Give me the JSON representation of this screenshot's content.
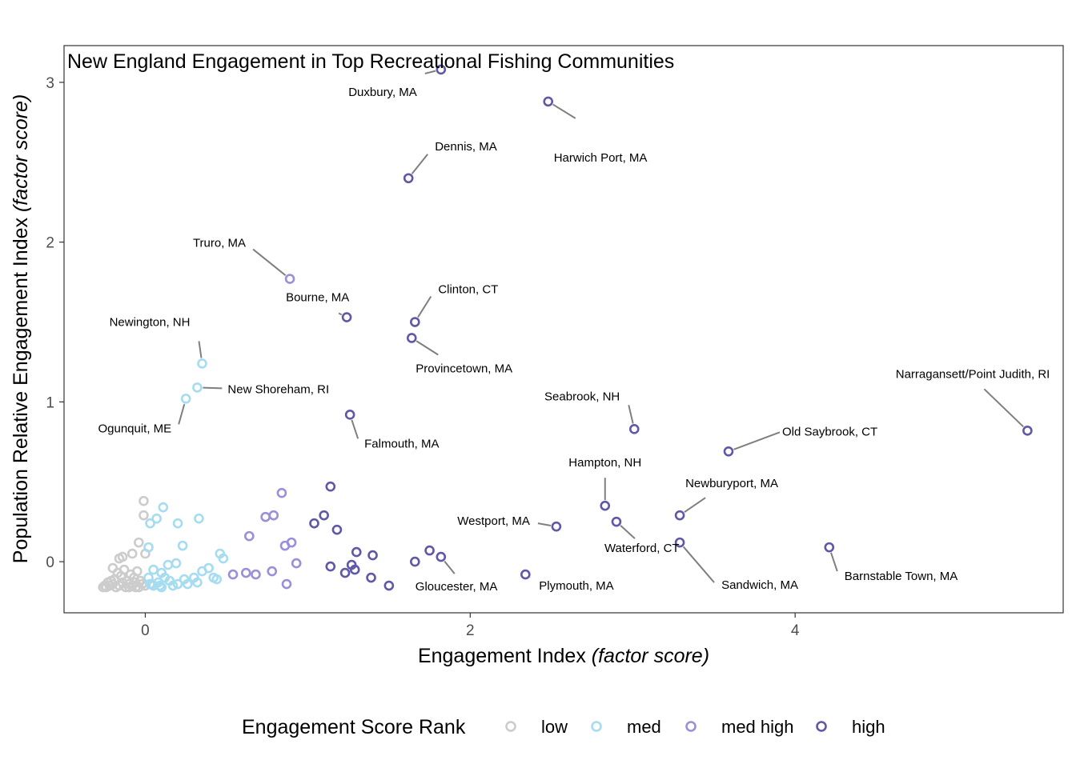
{
  "chart_data": {
    "type": "scatter",
    "title": "New England Engagement in Top Recreational Fishing Communities",
    "xlabel": "Engagement Index",
    "xlabel_italic": "(factor score)",
    "ylabel": "Population Relative Engagement Index",
    "ylabel_italic": "(factor score)",
    "xlim": [
      -0.5,
      5.65
    ],
    "ylim": [
      -0.32,
      3.23
    ],
    "x_ticks": [
      0,
      2,
      4
    ],
    "y_ticks": [
      0,
      1,
      2,
      3
    ],
    "grid": false,
    "legend": {
      "title": "Engagement Score Rank",
      "position": "bottom",
      "entries": [
        {
          "key": "low",
          "label": "low",
          "color": "#cccccc"
        },
        {
          "key": "med",
          "label": "med",
          "color": "#a6dcef"
        },
        {
          "key": "medhigh",
          "label": "med high",
          "color": "#9b8fd9"
        },
        {
          "key": "high",
          "label": "high",
          "color": "#5e58a6"
        }
      ]
    },
    "series": [
      {
        "key": "low",
        "points": [
          [
            -0.24,
            -0.16
          ],
          [
            -0.22,
            -0.15
          ],
          [
            -0.2,
            -0.14
          ],
          [
            -0.18,
            -0.16
          ],
          [
            -0.16,
            -0.15
          ],
          [
            -0.14,
            -0.13
          ],
          [
            -0.12,
            -0.16
          ],
          [
            -0.1,
            -0.14
          ],
          [
            -0.08,
            -0.15
          ],
          [
            -0.06,
            -0.13
          ],
          [
            -0.04,
            -0.16
          ],
          [
            -0.02,
            -0.14
          ],
          [
            0.0,
            -0.15
          ],
          [
            -0.23,
            -0.13
          ],
          [
            -0.19,
            -0.11
          ],
          [
            -0.15,
            -0.09
          ],
          [
            -0.11,
            -0.12
          ],
          [
            -0.07,
            -0.1
          ],
          [
            -0.03,
            -0.12
          ],
          [
            -0.17,
            -0.07
          ],
          [
            -0.13,
            -0.05
          ],
          [
            -0.2,
            -0.04
          ],
          [
            -0.09,
            -0.08
          ],
          [
            -0.05,
            -0.06
          ],
          [
            -0.14,
            0.03
          ],
          [
            -0.08,
            0.05
          ],
          [
            -0.04,
            0.12
          ],
          [
            0.0,
            0.05
          ],
          [
            -0.01,
            0.29
          ],
          [
            -0.01,
            0.38
          ],
          [
            -0.16,
            0.02
          ],
          [
            -0.25,
            -0.15
          ],
          [
            -0.26,
            -0.16
          ],
          [
            -0.21,
            -0.12
          ],
          [
            -0.1,
            -0.16
          ],
          [
            -0.06,
            -0.16
          ]
        ]
      },
      {
        "key": "med",
        "points": [
          [
            0.02,
            -0.1
          ],
          [
            0.05,
            -0.15
          ],
          [
            0.08,
            -0.13
          ],
          [
            0.1,
            -0.16
          ],
          [
            0.12,
            -0.1
          ],
          [
            0.15,
            -0.12
          ],
          [
            0.17,
            -0.15
          ],
          [
            0.2,
            -0.14
          ],
          [
            0.24,
            -0.11
          ],
          [
            0.26,
            -0.14
          ],
          [
            0.3,
            -0.1
          ],
          [
            0.32,
            -0.13
          ],
          [
            0.35,
            -0.06
          ],
          [
            0.39,
            -0.04
          ],
          [
            0.42,
            -0.1
          ],
          [
            0.44,
            -0.11
          ],
          [
            0.46,
            0.05
          ],
          [
            0.48,
            0.02
          ],
          [
            0.05,
            -0.05
          ],
          [
            0.1,
            -0.07
          ],
          [
            0.14,
            -0.02
          ],
          [
            0.19,
            -0.01
          ],
          [
            0.02,
            0.09
          ],
          [
            0.03,
            0.24
          ],
          [
            0.07,
            0.27
          ],
          [
            0.11,
            0.34
          ],
          [
            0.2,
            0.24
          ],
          [
            0.23,
            0.1
          ],
          [
            0.33,
            0.27
          ],
          [
            0.25,
            1.02
          ],
          [
            0.32,
            1.09
          ],
          [
            0.35,
            1.24
          ],
          [
            0.03,
            -0.14
          ],
          [
            0.09,
            -0.15
          ],
          [
            0.04,
            -0.14
          ]
        ]
      },
      {
        "key": "medhigh",
        "points": [
          [
            0.54,
            -0.08
          ],
          [
            0.62,
            -0.07
          ],
          [
            0.68,
            -0.08
          ],
          [
            0.78,
            -0.06
          ],
          [
            0.87,
            -0.14
          ],
          [
            0.93,
            -0.01
          ],
          [
            0.64,
            0.16
          ],
          [
            0.74,
            0.28
          ],
          [
            0.79,
            0.29
          ],
          [
            0.84,
            0.43
          ],
          [
            0.86,
            0.1
          ],
          [
            0.9,
            0.12
          ],
          [
            0.89,
            1.77
          ]
        ]
      },
      {
        "key": "high",
        "points": [
          [
            1.04,
            0.24
          ],
          [
            1.1,
            0.29
          ],
          [
            1.14,
            0.47
          ],
          [
            1.18,
            0.2
          ],
          [
            1.14,
            -0.03
          ],
          [
            1.23,
            -0.07
          ],
          [
            1.27,
            -0.02
          ],
          [
            1.29,
            -0.05
          ],
          [
            1.3,
            0.06
          ],
          [
            1.39,
            -0.1
          ],
          [
            1.4,
            0.04
          ],
          [
            1.5,
            -0.15
          ],
          [
            1.66,
            0.0
          ],
          [
            1.75,
            0.07
          ],
          [
            1.82,
            0.03
          ],
          [
            1.82,
            3.08
          ],
          [
            2.48,
            2.88
          ],
          [
            1.62,
            2.4
          ],
          [
            1.24,
            1.53
          ],
          [
            1.66,
            1.5
          ],
          [
            1.64,
            1.4
          ],
          [
            1.26,
            0.92
          ],
          [
            3.01,
            0.83
          ],
          [
            5.43,
            0.82
          ],
          [
            3.59,
            0.69
          ],
          [
            2.83,
            0.35
          ],
          [
            3.29,
            0.29
          ],
          [
            2.9,
            0.25
          ],
          [
            2.53,
            0.22
          ],
          [
            3.29,
            0.12
          ],
          [
            4.21,
            0.09
          ],
          [
            2.34,
            -0.08
          ]
        ]
      }
    ],
    "labels": [
      {
        "text": "Duxbury, MA",
        "x": 1.82,
        "y": 3.08
      },
      {
        "text": "Harwich Port, MA",
        "x": 2.48,
        "y": 2.88
      },
      {
        "text": "Dennis, MA",
        "x": 1.62,
        "y": 2.4
      },
      {
        "text": "Truro, MA",
        "x": 0.89,
        "y": 1.77
      },
      {
        "text": "Clinton, CT",
        "x": 1.66,
        "y": 1.5
      },
      {
        "text": "Bourne, MA",
        "x": 1.24,
        "y": 1.53
      },
      {
        "text": "Newington, NH",
        "x": 0.35,
        "y": 1.24
      },
      {
        "text": "Provincetown, MA",
        "x": 1.64,
        "y": 1.4
      },
      {
        "text": "Narragansett/Point Judith, RI",
        "x": 5.43,
        "y": 0.82
      },
      {
        "text": "New Shoreham, RI",
        "x": 0.32,
        "y": 1.09
      },
      {
        "text": "Seabrook, NH",
        "x": 3.01,
        "y": 0.83
      },
      {
        "text": "Ogunquit, ME",
        "x": 0.25,
        "y": 1.02
      },
      {
        "text": "Old Saybrook, CT",
        "x": 3.59,
        "y": 0.69
      },
      {
        "text": "Falmouth, MA",
        "x": 1.26,
        "y": 0.92
      },
      {
        "text": "Hampton, NH",
        "x": 2.83,
        "y": 0.35
      },
      {
        "text": "Newburyport, MA",
        "x": 3.29,
        "y": 0.29
      },
      {
        "text": "Westport, MA",
        "x": 2.53,
        "y": 0.22
      },
      {
        "text": "Waterford, CT",
        "x": 2.9,
        "y": 0.25
      },
      {
        "text": "Barnstable Town, MA",
        "x": 4.21,
        "y": 0.09
      },
      {
        "text": "Gloucester, MA",
        "x": 1.82,
        "y": 0.03
      },
      {
        "text": "Plymouth, MA",
        "x": 2.34,
        "y": -0.08
      },
      {
        "text": "Sandwich, MA",
        "x": 3.29,
        "y": 0.12
      }
    ]
  }
}
